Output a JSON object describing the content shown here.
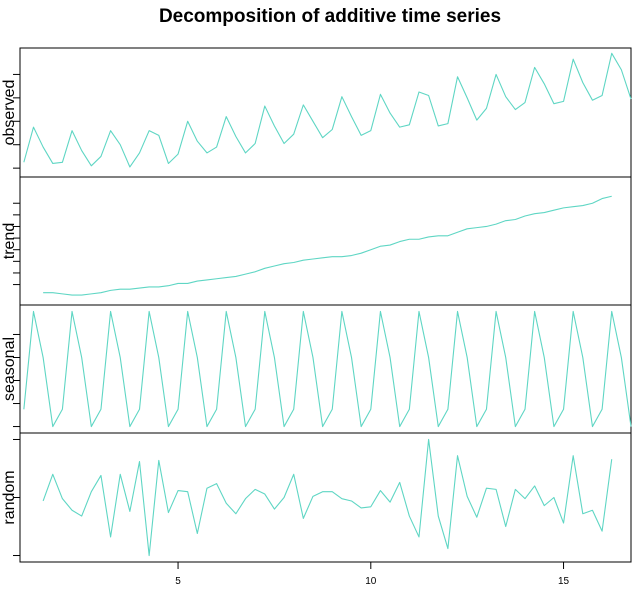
{
  "chart_data": {
    "type": "line",
    "title": "Decomposition of additive time series",
    "x_start": 1,
    "x_step": 0.25,
    "xlim": [
      0.9,
      16.75
    ],
    "x_ticks": [
      5,
      10,
      15
    ],
    "x_tick_labels": [
      "5",
      "10",
      "15"
    ],
    "line_color": "#5fd6c4",
    "panels": [
      {
        "name": "observed",
        "ylim": [
          -0.05,
          1.0
        ],
        "y_ticks": [
          0.0,
          0.2,
          0.4,
          0.6,
          0.8
        ],
        "values": [
          0.05,
          0.35,
          0.18,
          0.04,
          0.05,
          0.32,
          0.15,
          0.02,
          0.1,
          0.32,
          0.2,
          0.01,
          0.13,
          0.32,
          0.28,
          0.04,
          0.12,
          0.4,
          0.23,
          0.13,
          0.18,
          0.44,
          0.27,
          0.13,
          0.21,
          0.53,
          0.36,
          0.21,
          0.29,
          0.54,
          0.4,
          0.26,
          0.33,
          0.61,
          0.44,
          0.28,
          0.32,
          0.63,
          0.47,
          0.35,
          0.37,
          0.65,
          0.62,
          0.36,
          0.38,
          0.78,
          0.6,
          0.41,
          0.51,
          0.8,
          0.61,
          0.5,
          0.56,
          0.86,
          0.72,
          0.55,
          0.57,
          0.93,
          0.73,
          0.58,
          0.62,
          0.98,
          0.84,
          0.59
        ]
      },
      {
        "name": "trend",
        "ylim": [
          -0.05,
          1.0
        ],
        "y_ticks": [
          0.1,
          0.2,
          0.3,
          0.4,
          0.5,
          0.6,
          0.7,
          0.8
        ],
        "values": [
          null,
          null,
          0.03,
          0.03,
          0.02,
          0.01,
          0.01,
          0.02,
          0.03,
          0.05,
          0.06,
          0.06,
          0.07,
          0.08,
          0.08,
          0.09,
          0.11,
          0.11,
          0.13,
          0.14,
          0.15,
          0.16,
          0.17,
          0.19,
          0.21,
          0.24,
          0.26,
          0.28,
          0.29,
          0.31,
          0.32,
          0.33,
          0.34,
          0.34,
          0.35,
          0.37,
          0.4,
          0.43,
          0.44,
          0.47,
          0.49,
          0.49,
          0.51,
          0.52,
          0.52,
          0.55,
          0.58,
          0.59,
          0.6,
          0.62,
          0.65,
          0.66,
          0.69,
          0.71,
          0.72,
          0.74,
          0.76,
          0.77,
          0.78,
          0.8,
          0.84,
          0.86,
          null,
          null
        ]
      },
      {
        "name": "seasonal",
        "ylim": [
          -0.03,
          1.03
        ],
        "y_ticks": [
          0.0,
          0.2,
          0.4,
          0.6,
          0.8
        ],
        "values": [
          0.15,
          1.0,
          0.6,
          0.0,
          0.15,
          1.0,
          0.6,
          0.0,
          0.15,
          1.0,
          0.6,
          0.0,
          0.15,
          1.0,
          0.6,
          0.0,
          0.15,
          1.0,
          0.6,
          0.0,
          0.15,
          1.0,
          0.6,
          0.0,
          0.15,
          1.0,
          0.6,
          0.0,
          0.15,
          1.0,
          0.6,
          0.0,
          0.15,
          1.0,
          0.6,
          0.0,
          0.15,
          1.0,
          0.6,
          0.0,
          0.15,
          1.0,
          0.6,
          0.0,
          0.15,
          1.0,
          0.6,
          0.0,
          0.15,
          1.0,
          0.6,
          0.0,
          0.15,
          1.0,
          0.6,
          0.0,
          0.15,
          1.0,
          0.6,
          0.0,
          0.15,
          1.0,
          0.6,
          0.0
        ]
      },
      {
        "name": "random",
        "ylim": [
          -0.03,
          1.03
        ],
        "y_ticks": [
          0.0,
          0.5,
          1.0
        ],
        "values": [
          null,
          null,
          0.47,
          0.7,
          0.49,
          0.39,
          0.34,
          0.55,
          0.69,
          0.16,
          0.7,
          0.38,
          0.81,
          0.0,
          0.82,
          0.37,
          0.56,
          0.55,
          0.19,
          0.58,
          0.62,
          0.45,
          0.36,
          0.49,
          0.57,
          0.53,
          0.4,
          0.5,
          0.7,
          0.32,
          0.51,
          0.55,
          0.55,
          0.49,
          0.47,
          0.41,
          0.42,
          0.56,
          0.46,
          0.63,
          0.34,
          0.16,
          1.0,
          0.34,
          0.06,
          0.86,
          0.51,
          0.33,
          0.58,
          0.57,
          0.25,
          0.57,
          0.49,
          0.6,
          0.43,
          0.5,
          0.28,
          0.86,
          0.36,
          0.39,
          0.21,
          0.83,
          null,
          null
        ]
      }
    ]
  }
}
